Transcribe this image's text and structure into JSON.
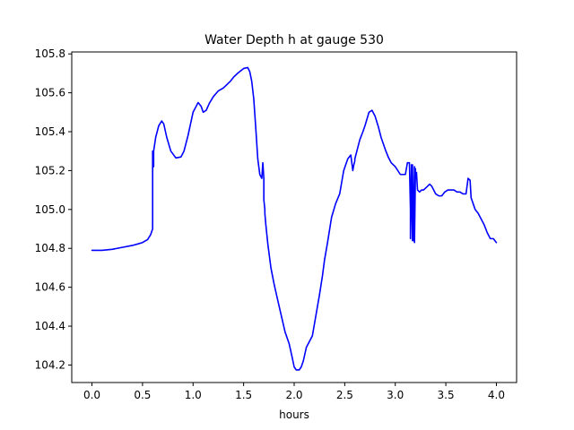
{
  "chart_data": {
    "type": "line",
    "title": "Water Depth h at gauge 530",
    "xlabel": "hours",
    "ylabel": "",
    "xlim": [
      -0.2,
      4.2
    ],
    "ylim": [
      104.11,
      105.81
    ],
    "xticks": [
      0.0,
      0.5,
      1.0,
      1.5,
      2.0,
      2.5,
      3.0,
      3.5,
      4.0
    ],
    "xtick_labels": [
      "0.0",
      "0.5",
      "1.0",
      "1.5",
      "2.0",
      "2.5",
      "3.0",
      "3.5",
      "4.0"
    ],
    "yticks": [
      104.2,
      104.4,
      104.6,
      104.8,
      105.0,
      105.2,
      105.4,
      105.6,
      105.8
    ],
    "ytick_labels": [
      "104.2",
      "104.4",
      "104.6",
      "104.8",
      "105.0",
      "105.2",
      "105.4",
      "105.6",
      "105.8"
    ],
    "grid": false,
    "series": [
      {
        "color": "#0000ff",
        "x": [
          0.0,
          0.1,
          0.2,
          0.3,
          0.4,
          0.45,
          0.5,
          0.55,
          0.58,
          0.6,
          0.6,
          0.61,
          0.61,
          0.63,
          0.66,
          0.69,
          0.71,
          0.74,
          0.78,
          0.83,
          0.88,
          0.91,
          0.95,
          1.0,
          1.05,
          1.08,
          1.1,
          1.13,
          1.16,
          1.2,
          1.25,
          1.3,
          1.33,
          1.37,
          1.4,
          1.44,
          1.5,
          1.54,
          1.56,
          1.58,
          1.6,
          1.62,
          1.64,
          1.66,
          1.68,
          1.69,
          1.7,
          1.7,
          1.71,
          1.71,
          1.72,
          1.74,
          1.77,
          1.8,
          1.83,
          1.87,
          1.91,
          1.95,
          1.98,
          2.0,
          2.02,
          2.05,
          2.07,
          2.09,
          2.12,
          2.15,
          2.18,
          2.21,
          2.25,
          2.28,
          2.3,
          2.33,
          2.37,
          2.41,
          2.45,
          2.49,
          2.53,
          2.56,
          2.58,
          2.59,
          2.6,
          2.6,
          2.62,
          2.65,
          2.68,
          2.7,
          2.74,
          2.77,
          2.8,
          2.83,
          2.86,
          2.9,
          2.93,
          2.96,
          3.0,
          3.05,
          3.1,
          3.12,
          3.14,
          3.15,
          3.15,
          3.16,
          3.17,
          3.17,
          3.18,
          3.19,
          3.19,
          3.2,
          3.2,
          3.21,
          3.22,
          3.24,
          3.26,
          3.28,
          3.3,
          3.32,
          3.34,
          3.36,
          3.38,
          3.4,
          3.43,
          3.46,
          3.49,
          3.52,
          3.55,
          3.58,
          3.61,
          3.64,
          3.67,
          3.7,
          3.72,
          3.72,
          3.74,
          3.75,
          3.75,
          3.77,
          3.79,
          3.82,
          3.85,
          3.88,
          3.91,
          3.94,
          3.97,
          4.0
        ],
        "y": [
          104.79,
          104.79,
          104.795,
          104.805,
          104.815,
          104.822,
          104.83,
          104.845,
          104.87,
          104.9,
          105.3,
          105.22,
          105.3,
          105.37,
          105.43,
          105.455,
          105.44,
          105.37,
          105.3,
          105.265,
          105.27,
          105.3,
          105.38,
          105.5,
          105.55,
          105.53,
          105.5,
          105.51,
          105.545,
          105.58,
          105.61,
          105.625,
          105.64,
          105.66,
          105.68,
          105.7,
          105.725,
          105.73,
          105.71,
          105.66,
          105.57,
          105.42,
          105.26,
          105.18,
          105.16,
          105.24,
          105.16,
          105.05,
          105.0,
          104.98,
          104.92,
          104.82,
          104.7,
          104.62,
          104.55,
          104.46,
          104.37,
          104.31,
          104.24,
          104.19,
          104.175,
          104.175,
          104.19,
          104.22,
          104.29,
          104.32,
          104.35,
          104.44,
          104.56,
          104.66,
          104.74,
          104.83,
          104.96,
          105.03,
          105.08,
          105.2,
          105.26,
          105.28,
          105.2,
          105.23,
          105.25,
          105.26,
          105.3,
          105.36,
          105.4,
          105.43,
          105.5,
          105.51,
          105.48,
          105.43,
          105.37,
          105.31,
          105.27,
          105.24,
          105.22,
          105.18,
          105.18,
          105.24,
          105.24,
          105.0,
          104.85,
          105.23,
          104.84,
          105.23,
          104.84,
          105.22,
          104.83,
          105.21,
          105.16,
          105.19,
          105.1,
          105.09,
          105.1,
          105.1,
          105.11,
          105.12,
          105.13,
          105.12,
          105.1,
          105.08,
          105.07,
          105.07,
          105.09,
          105.1,
          105.1,
          105.1,
          105.09,
          105.09,
          105.08,
          105.08,
          105.16,
          105.16,
          105.15,
          105.06,
          105.06,
          105.03,
          105.0,
          104.98,
          104.95,
          104.92,
          104.88,
          104.85,
          104.85,
          104.83
        ]
      }
    ]
  }
}
